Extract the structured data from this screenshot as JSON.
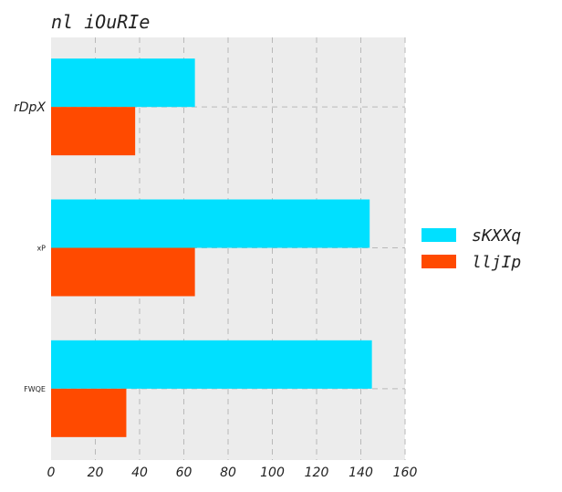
{
  "chart_data": {
    "type": "bar",
    "orientation": "horizontal",
    "title": "nl  iOuRIe",
    "categories": [
      "rDpX",
      "xP",
      "FWQE"
    ],
    "series": [
      {
        "name": "sKXXq",
        "color": "#00e0ff",
        "values": [
          65,
          144,
          145
        ]
      },
      {
        "name": "lljIp",
        "color": "#ff4a00",
        "values": [
          38,
          65,
          34
        ]
      }
    ],
    "xlim": [
      0,
      160
    ],
    "xticks": [
      "0",
      "20",
      "40",
      "60",
      "80",
      "100",
      "120",
      "140",
      "160"
    ],
    "xlabel": "",
    "ylabel": "",
    "grid": true,
    "legend_position": "right",
    "plot_background": "#ececec"
  }
}
